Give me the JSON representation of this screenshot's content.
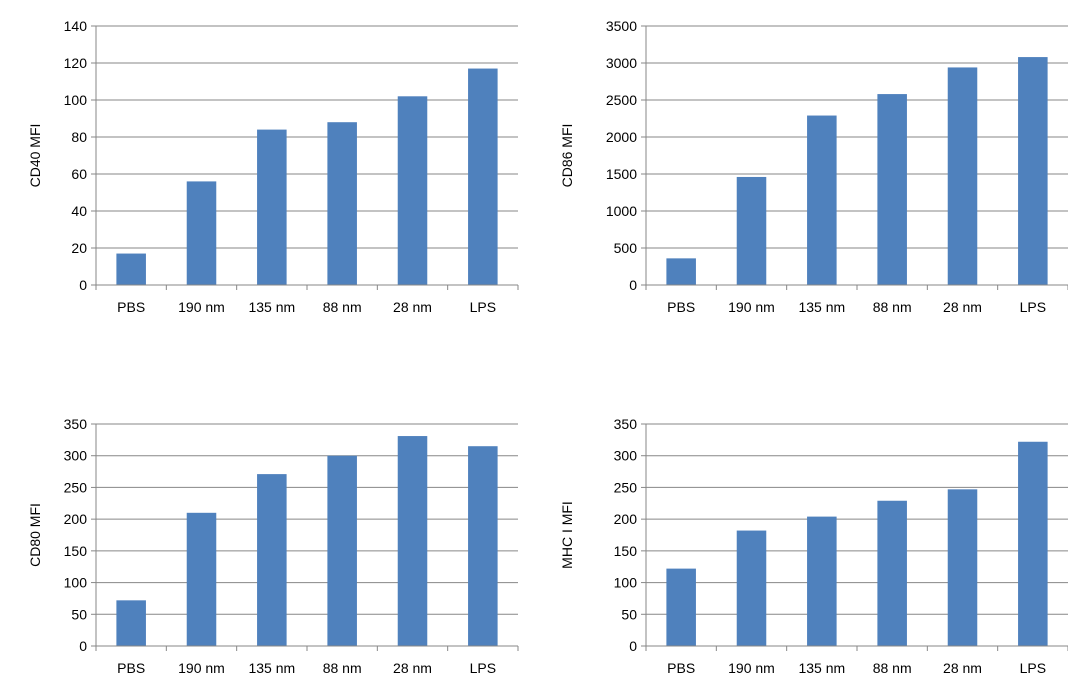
{
  "chart_data": [
    {
      "type": "bar",
      "categories": [
        "PBS",
        "190 nm",
        "135 nm",
        "88 nm",
        "28 nm",
        "LPS"
      ],
      "values": [
        17,
        56,
        84,
        88,
        102,
        117
      ],
      "ylabel": "CD40 MFI",
      "ylim": [
        0,
        140
      ],
      "yticks": [
        0,
        20,
        40,
        60,
        80,
        100,
        120,
        140
      ],
      "grid": true,
      "bar_color": "#4f81bd"
    },
    {
      "type": "bar",
      "categories": [
        "PBS",
        "190 nm",
        "135 nm",
        "88 nm",
        "28 nm",
        "LPS"
      ],
      "values": [
        360,
        1460,
        2290,
        2580,
        2940,
        3080
      ],
      "ylabel": "CD86 MFI",
      "ylim": [
        0,
        3500
      ],
      "yticks": [
        0,
        500,
        1000,
        1500,
        2000,
        2500,
        3000,
        3500
      ],
      "grid": true,
      "bar_color": "#4f81bd"
    },
    {
      "type": "bar",
      "categories": [
        "PBS",
        "190 nm",
        "135 nm",
        "88 nm",
        "28 nm",
        "LPS"
      ],
      "values": [
        72,
        210,
        271,
        300,
        331,
        315
      ],
      "ylabel": "CD80 MFI",
      "ylim": [
        0,
        350
      ],
      "yticks": [
        0,
        50,
        100,
        150,
        200,
        250,
        300,
        350
      ],
      "grid": true,
      "bar_color": "#4f81bd"
    },
    {
      "type": "bar",
      "categories": [
        "PBS",
        "190 nm",
        "135 nm",
        "88 nm",
        "28 nm",
        "LPS"
      ],
      "values": [
        122,
        182,
        204,
        229,
        247,
        322
      ],
      "ylabel": "MHC I MFI",
      "ylim": [
        0,
        350
      ],
      "yticks": [
        0,
        50,
        100,
        150,
        200,
        250,
        300,
        350
      ],
      "grid": true,
      "bar_color": "#4f81bd"
    }
  ]
}
